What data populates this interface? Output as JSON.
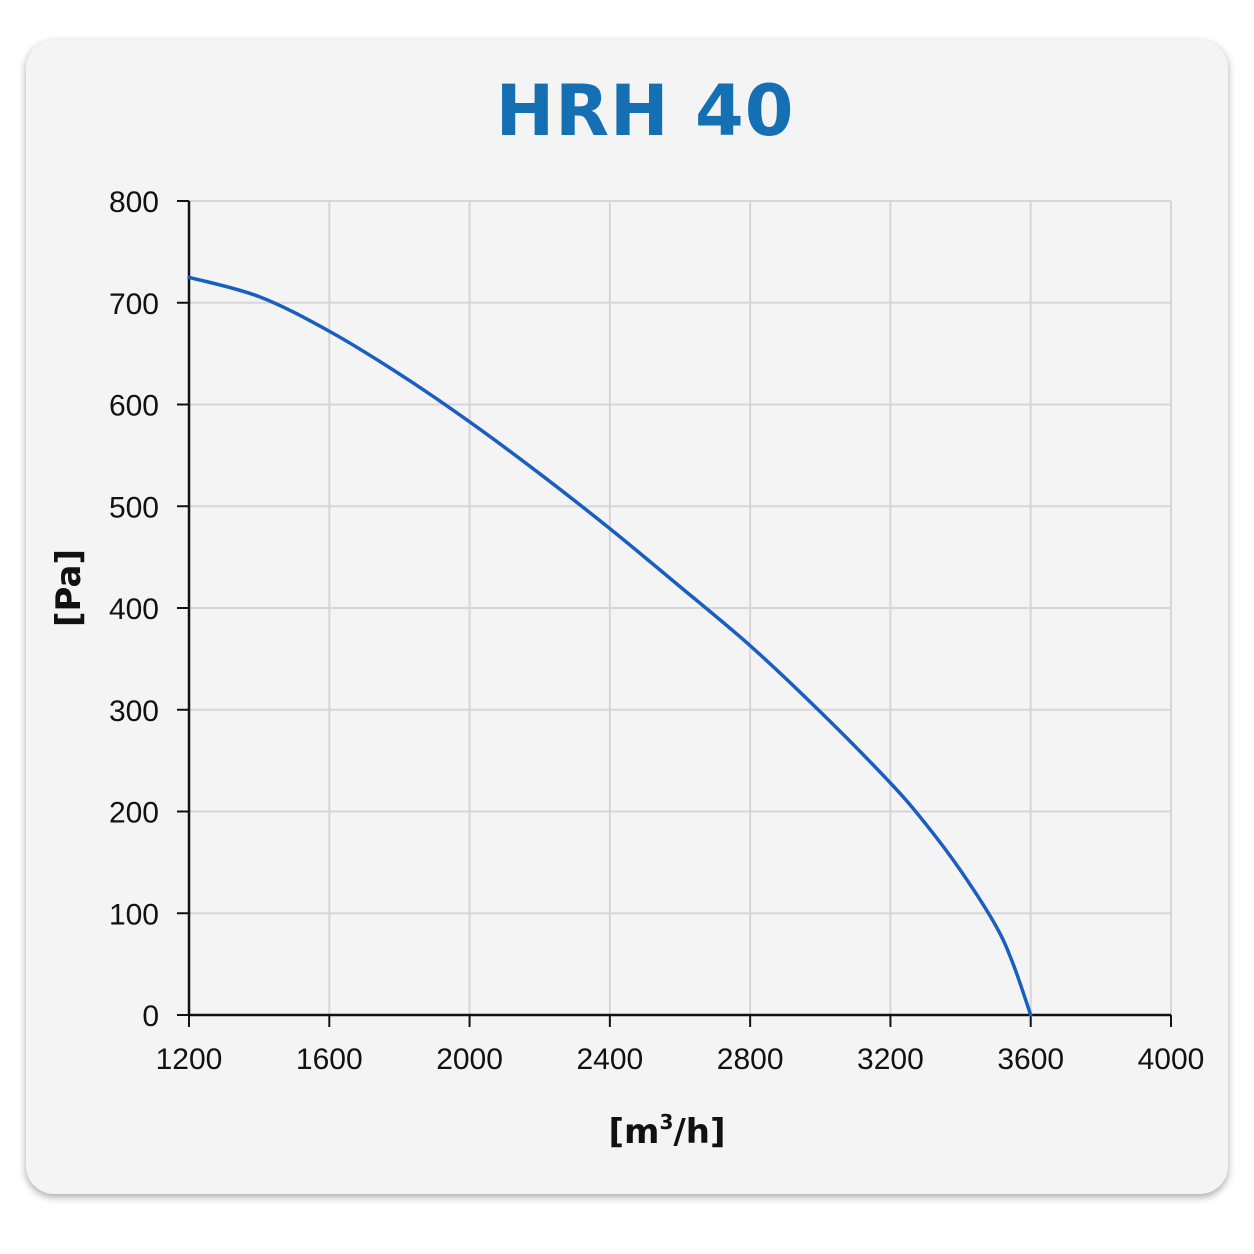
{
  "chart_data": {
    "type": "line",
    "title": "HRH 40",
    "xlabel_main": "[m",
    "xlabel_sup": "3",
    "xlabel_tail": "/h]",
    "ylabel": "[Pa]",
    "xlim": [
      1200,
      4000
    ],
    "ylim": [
      0,
      800
    ],
    "xticks": [
      1200,
      1600,
      2000,
      2400,
      2800,
      3200,
      3600,
      4000
    ],
    "yticks": [
      0,
      100,
      200,
      300,
      400,
      500,
      600,
      700,
      800
    ],
    "grid": true,
    "colors": {
      "title": "#1570b3",
      "line": "#1a5fc0",
      "grid": "#d6d6d6",
      "axis": "#111111"
    },
    "series": [
      {
        "x": [
          1200,
          1400,
          1600,
          1800,
          2000,
          2200,
          2400,
          2600,
          2800,
          3000,
          3200,
          3300,
          3400,
          3500,
          3550,
          3600
        ],
        "y": [
          725,
          706,
          672,
          630,
          583,
          532,
          478,
          421,
          363,
          298,
          228,
          188,
          142,
          88,
          50,
          0
        ]
      }
    ]
  }
}
